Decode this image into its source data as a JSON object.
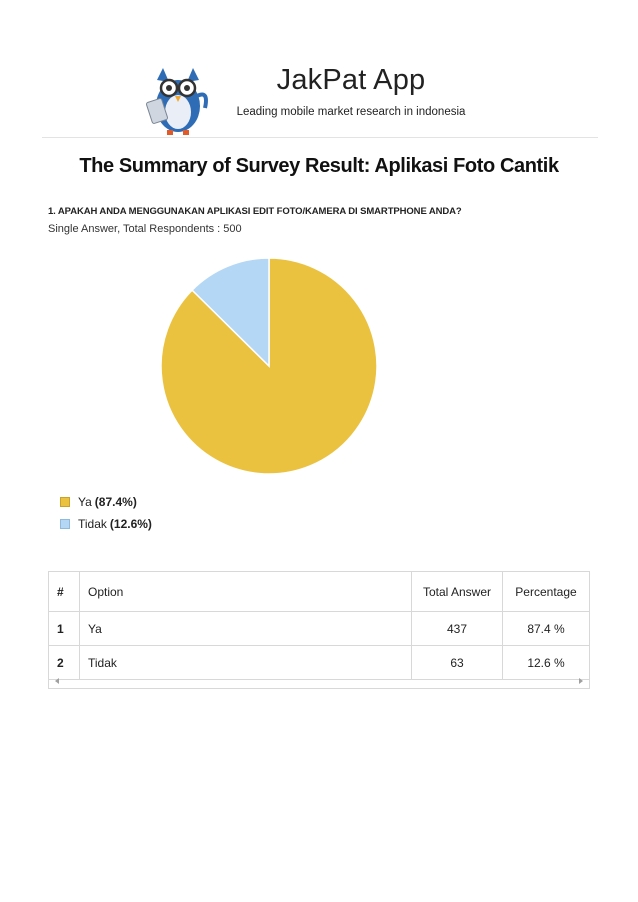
{
  "header": {
    "app_title": "JakPat App",
    "tagline": "Leading mobile market research in indonesia"
  },
  "document": {
    "title": "The Summary of Survey Result: Aplikasi Foto Cantik"
  },
  "question": {
    "text": "1. APAKAH ANDA MENGGUNAKAN APLIKASI EDIT FOTO/KAMERA DI SMARTPHONE ANDA?",
    "meta": "Single Answer, Total Respondents : 500"
  },
  "legend": [
    {
      "label": "Ya",
      "pct": "(87.4%)",
      "color": "#ebc240",
      "border": "#c9a227"
    },
    {
      "label": "Tidak",
      "pct": "(12.6%)",
      "color": "#b3d7f5",
      "border": "#8fb9dd"
    }
  ],
  "chart_data": {
    "type": "pie",
    "title": "",
    "slices": [
      {
        "label": "Ya",
        "value": 87.4,
        "color": "#ebc240"
      },
      {
        "label": "Tidak",
        "value": 12.6,
        "color": "#b3d7f5"
      }
    ]
  },
  "table": {
    "headers": {
      "num": "#",
      "option": "Option",
      "total": "Total Answer",
      "pct": "Percentage"
    },
    "rows": [
      {
        "num": "1",
        "option": "Ya",
        "total": "437",
        "pct": "87.4 %"
      },
      {
        "num": "2",
        "option": "Tidak",
        "total": "63",
        "pct": "12.6 %"
      }
    ]
  }
}
